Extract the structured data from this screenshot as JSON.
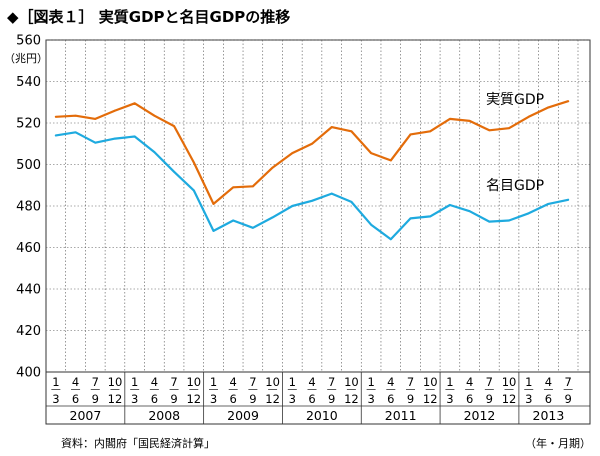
{
  "chart_data": {
    "type": "line",
    "title": "◆［図表１］ 実質GDPと名目GDPの推移",
    "ylabel": "（兆円）",
    "ylim": [
      400,
      560
    ],
    "yticks": [
      400,
      420,
      440,
      460,
      480,
      500,
      520,
      540,
      560
    ],
    "grid": true,
    "categories": [
      [
        "1",
        "3"
      ],
      [
        "4",
        "6"
      ],
      [
        "7",
        "9"
      ],
      [
        "10",
        "12"
      ],
      [
        "1",
        "3"
      ],
      [
        "4",
        "6"
      ],
      [
        "7",
        "9"
      ],
      [
        "10",
        "12"
      ],
      [
        "1",
        "3"
      ],
      [
        "4",
        "6"
      ],
      [
        "7",
        "9"
      ],
      [
        "10",
        "12"
      ],
      [
        "1",
        "3"
      ],
      [
        "4",
        "6"
      ],
      [
        "7",
        "9"
      ],
      [
        "10",
        "12"
      ],
      [
        "1",
        "3"
      ],
      [
        "4",
        "6"
      ],
      [
        "7",
        "9"
      ],
      [
        "10",
        "12"
      ],
      [
        "1",
        "3"
      ],
      [
        "4",
        "6"
      ],
      [
        "7",
        "9"
      ],
      [
        "10",
        "12"
      ],
      [
        "1",
        "3"
      ],
      [
        "4",
        "6"
      ],
      [
        "7",
        "9"
      ]
    ],
    "group_labels": [
      {
        "label": "2007",
        "count": 4
      },
      {
        "label": "2008",
        "count": 4
      },
      {
        "label": "2009",
        "count": 4
      },
      {
        "label": "2010",
        "count": 4
      },
      {
        "label": "2011",
        "count": 4
      },
      {
        "label": "2012",
        "count": 4
      },
      {
        "label": "2013",
        "count": 3
      }
    ],
    "series": [
      {
        "name": "実質GDP",
        "color": "#e36c0a",
        "values": [
          523,
          523.5,
          522,
          526,
          529.5,
          523.5,
          518.5,
          501,
          481,
          489,
          489.5,
          498.5,
          505.5,
          510,
          518,
          516,
          505.5,
          502,
          514.5,
          516,
          522,
          521,
          516.5,
          517.5,
          523,
          527.5,
          530.5
        ]
      },
      {
        "name": "名目GDP",
        "color": "#1eaadf",
        "values": [
          514,
          515.5,
          510.5,
          512.5,
          513.5,
          506,
          496.5,
          487.5,
          468,
          473,
          469.5,
          474.5,
          480,
          482.5,
          486,
          482,
          471,
          464,
          474,
          475,
          480.5,
          477.5,
          472.5,
          473,
          476.5,
          481,
          483
        ]
      }
    ]
  },
  "footer": {
    "source": "資料：内閣府「国民経済計算」",
    "axis_note": "（年・月期）"
  }
}
